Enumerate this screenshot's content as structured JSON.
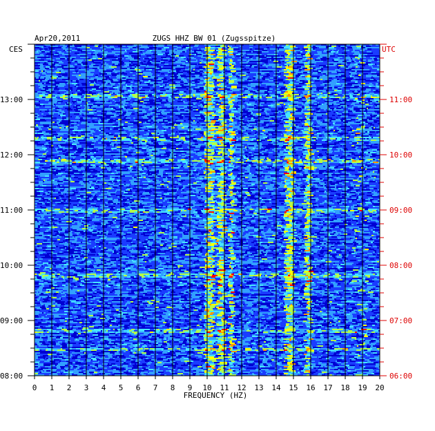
{
  "chart_data": {
    "type": "heatmap",
    "title": "ZUGS HHZ BW 01 (Zugsspitze)",
    "date": "Apr20,2011",
    "left_axis_label": "CES",
    "right_axis_label": "UTC",
    "xlabel": "FREQUENCY (HZ)",
    "xlim": [
      0,
      20
    ],
    "x_ticks": [
      "0",
      "1",
      "2",
      "3",
      "4",
      "5",
      "6",
      "7",
      "8",
      "9",
      "10",
      "11",
      "12",
      "13",
      "14",
      "15",
      "16",
      "17",
      "18",
      "19",
      "20"
    ],
    "time_range_hours": [
      8.0,
      14.0
    ],
    "left_ticks": [
      {
        "hour": 13,
        "label": "13:00"
      },
      {
        "hour": 12,
        "label": "12:00"
      },
      {
        "hour": 11,
        "label": "11:00"
      },
      {
        "hour": 10,
        "label": "10:00"
      },
      {
        "hour": 9,
        "label": "09:00"
      },
      {
        "hour": 8,
        "label": "08:00"
      }
    ],
    "right_ticks": [
      {
        "hour": 13,
        "label": "11:00"
      },
      {
        "hour": 12,
        "label": "10:00"
      },
      {
        "hour": 11,
        "label": "09:00"
      },
      {
        "hour": 10,
        "label": "08:00"
      },
      {
        "hour": 9,
        "label": "07:00"
      },
      {
        "hour": 8,
        "label": "06:00"
      }
    ],
    "dominant_frequency_bands_hz": [
      [
        9.8,
        10.3
      ],
      [
        10.5,
        10.9
      ],
      [
        11.2,
        11.4
      ],
      [
        14.4,
        14.9
      ],
      [
        15.6,
        15.9
      ]
    ],
    "strong_rows_hour": [
      13.08,
      12.3,
      11.9,
      11.0,
      9.82,
      8.82,
      8.48
    ],
    "colormap": [
      "#00007a",
      "#0000d2",
      "#1a3cff",
      "#32a0ff",
      "#46e6ff",
      "#b4ff46",
      "#ffff00",
      "#ff9600",
      "#ff0000"
    ],
    "colors": {
      "background": "#00008c",
      "grid": "#000000",
      "left_text": "#000000",
      "right_text": "#dd0000"
    }
  }
}
